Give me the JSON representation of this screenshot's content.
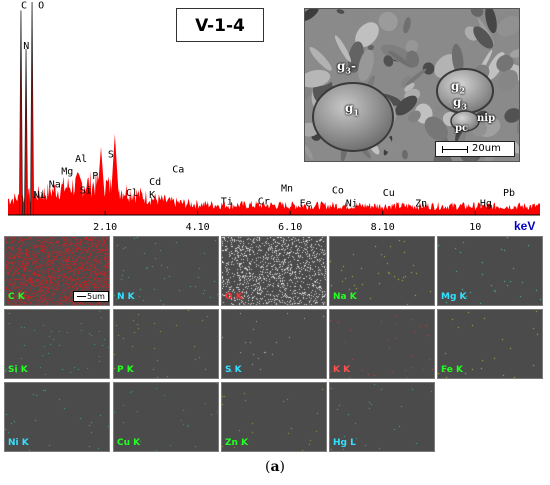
{
  "figure": {
    "sample_label": "V-1-4",
    "caption_open": "(",
    "caption_letter": "a",
    "caption_close": ")"
  },
  "chart_data": {
    "type": "area",
    "xlabel": "keV",
    "xlim": [
      0,
      11.5
    ],
    "ylim": [
      0,
      100
    ],
    "ticks": [
      {
        "value": 2.1,
        "label": "2.10"
      },
      {
        "value": 4.1,
        "label": "4.10"
      },
      {
        "value": 6.1,
        "label": "6.10"
      },
      {
        "value": 8.1,
        "label": "8.10"
      },
      {
        "value": 10.1,
        "label": "10"
      }
    ],
    "peaks": [
      {
        "label": "C",
        "energy": 0.28,
        "height": 96
      },
      {
        "label": "O",
        "energy": 0.52,
        "height": 100
      },
      {
        "label": "N",
        "energy": 0.39,
        "height": 78
      },
      {
        "label": "Ni",
        "energy": 0.85,
        "height": 6
      },
      {
        "label": "Na",
        "energy": 1.04,
        "height": 6
      },
      {
        "label": "Mg",
        "energy": 1.25,
        "height": 8
      },
      {
        "label": "Al",
        "energy": 1.49,
        "height": 10
      },
      {
        "label": "Si",
        "energy": 1.74,
        "height": 12
      },
      {
        "label": "P",
        "energy": 2.01,
        "height": 32
      },
      {
        "label": "S",
        "energy": 2.31,
        "height": 38
      },
      {
        "label": "Cl",
        "energy": 2.62,
        "height": 4
      },
      {
        "label": "K",
        "energy": 3.31,
        "height": 5
      },
      {
        "label": "Cd",
        "energy": 3.13,
        "height": 4
      },
      {
        "label": "Ca",
        "energy": 3.69,
        "height": 5
      },
      {
        "label": "Ti",
        "energy": 4.51,
        "height": 2
      },
      {
        "label": "Cr",
        "energy": 5.41,
        "height": 2
      },
      {
        "label": "Mn",
        "energy": 5.9,
        "height": 2
      },
      {
        "label": "Fe",
        "energy": 6.4,
        "height": 2
      },
      {
        "label": "Co",
        "energy": 6.93,
        "height": 2
      },
      {
        "label": "Ni",
        "energy": 7.48,
        "height": 2
      },
      {
        "label": "Cu",
        "energy": 8.05,
        "height": 2
      },
      {
        "label": "Zn",
        "energy": 8.64,
        "height": 2
      },
      {
        "label": "Hg",
        "energy": 9.99,
        "height": 2
      },
      {
        "label": "Pb",
        "energy": 10.55,
        "height": 2
      }
    ],
    "peak_labels": [
      {
        "text": "C",
        "x": 0.28,
        "y": 97
      },
      {
        "text": "O",
        "x": 0.65,
        "y": 97
      },
      {
        "text": "N",
        "x": 0.33,
        "y": 78
      },
      {
        "text": "Al",
        "x": 1.45,
        "y": 25
      },
      {
        "text": "Mg",
        "x": 1.15,
        "y": 19
      },
      {
        "text": "P",
        "x": 1.82,
        "y": 17
      },
      {
        "text": "S",
        "x": 2.16,
        "y": 27
      },
      {
        "text": "Na",
        "x": 0.88,
        "y": 13
      },
      {
        "text": "Si",
        "x": 1.55,
        "y": 10
      },
      {
        "text": "Ni",
        "x": 0.55,
        "y": 8
      },
      {
        "text": "Cl",
        "x": 2.55,
        "y": 9
      },
      {
        "text": "Cd",
        "x": 3.05,
        "y": 14
      },
      {
        "text": "K",
        "x": 3.05,
        "y": 8
      },
      {
        "text": "Ca",
        "x": 3.55,
        "y": 20
      },
      {
        "text": "Ti",
        "x": 4.6,
        "y": 5
      },
      {
        "text": "Mn",
        "x": 5.9,
        "y": 11
      },
      {
        "text": "Cr",
        "x": 5.4,
        "y": 5
      },
      {
        "text": "Co",
        "x": 7.0,
        "y": 10
      },
      {
        "text": "Fe",
        "x": 6.3,
        "y": 4
      },
      {
        "text": "Cu",
        "x": 8.1,
        "y": 9
      },
      {
        "text": "Ni",
        "x": 7.3,
        "y": 4
      },
      {
        "text": "Zn",
        "x": 8.8,
        "y": 4
      },
      {
        "text": "Hg",
        "x": 10.2,
        "y": 4
      },
      {
        "text": "Pb",
        "x": 10.7,
        "y": 9
      }
    ],
    "fill_color": "#ff0000"
  },
  "sem_image": {
    "scale_label": "20um",
    "grain_labels": [
      {
        "base": "g",
        "sub": "3",
        "suffix": "-"
      },
      {
        "base": "g",
        "sub": "1",
        "suffix": ""
      },
      {
        "base": "g",
        "sub": "2",
        "suffix": ""
      },
      {
        "base": "g",
        "sub": "3",
        "suffix": ""
      },
      {
        "base": "nip",
        "sub": "",
        "suffix": ""
      },
      {
        "base": "pc",
        "sub": "",
        "suffix": ""
      }
    ]
  },
  "element_maps": [
    {
      "label": "C K",
      "color": "#22ff22",
      "dot": "#d02020",
      "density": 0.3,
      "scale": "5um"
    },
    {
      "label": "N K",
      "color": "#33e0ff",
      "dot": "#4fb070",
      "density": 0.006
    },
    {
      "label": "O K",
      "color": "#ff3030",
      "dot": "#dcdcdc",
      "density": 0.16
    },
    {
      "label": "Na K",
      "color": "#22ff22",
      "dot": "#c0c030",
      "density": 0.005
    },
    {
      "label": "Mg K",
      "color": "#33e0ff",
      "dot": "#40d0c0",
      "density": 0.004
    },
    {
      "label": "Si K",
      "color": "#22ff22",
      "dot": "#3cb070",
      "density": 0.006
    },
    {
      "label": "P K",
      "color": "#22ff22",
      "dot": "#a0a040",
      "density": 0.004
    },
    {
      "label": "S K",
      "color": "#33e0ff",
      "dot": "#b0b0b0",
      "density": 0.003
    },
    {
      "label": "K K",
      "color": "#ff5050",
      "dot": "#d04040",
      "density": 0.004
    },
    {
      "label": "Fe K",
      "color": "#22ff22",
      "dot": "#c0c040",
      "density": 0.003
    },
    {
      "label": "Ni K",
      "color": "#33e0ff",
      "dot": "#40b0b0",
      "density": 0.003
    },
    {
      "label": "Cu K",
      "color": "#22ff22",
      "dot": "#40a060",
      "density": 0.003
    },
    {
      "label": "Zn K",
      "color": "#22ff22",
      "dot": "#a0a040",
      "density": 0.003
    },
    {
      "label": "Hg L",
      "color": "#33e0ff",
      "dot": "#40b0b0",
      "density": 0.003
    }
  ]
}
